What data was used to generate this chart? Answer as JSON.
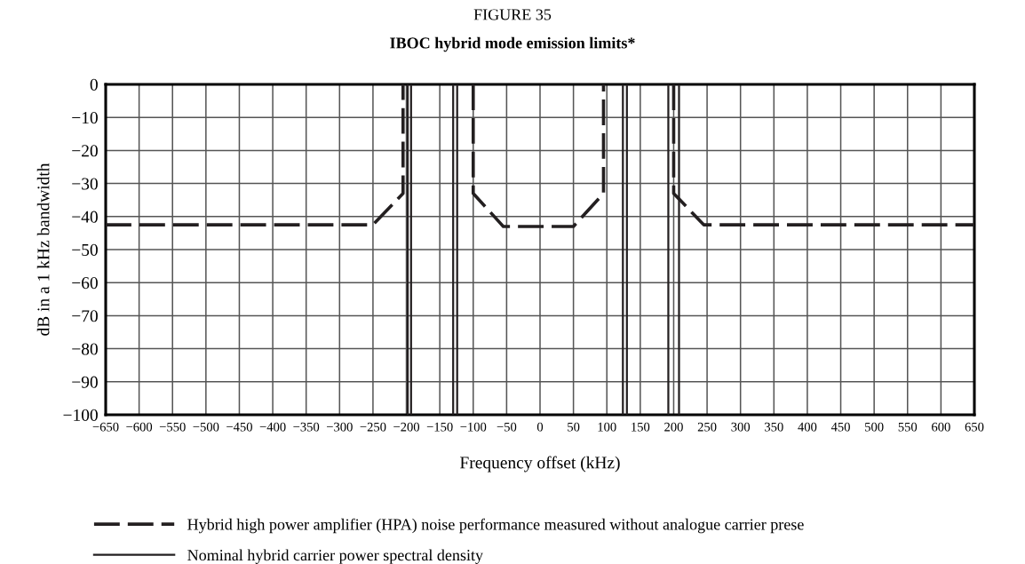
{
  "chart_data": {
    "type": "line",
    "title": "FIGURE 35",
    "subtitle": "IBOC hybrid mode emission limits*",
    "xlabel": "Frequency offset (kHz)",
    "ylabel": "dB in a 1 kHz bandwidth",
    "series": [
      {
        "name": "Hybrid high power amplifier (HPA) noise performance measured without analogue carrier prese",
        "color": "#231f20",
        "line_style": "dashed",
        "x": [
          -650,
          -250,
          -205,
          -205,
          null,
          -100,
          -100,
          -55,
          50,
          95,
          95,
          null,
          200,
          200,
          245,
          650
        ],
        "values": [
          -42.5,
          -42.5,
          -33,
          0,
          null,
          0,
          -33,
          -43,
          -43,
          -33,
          0,
          null,
          0,
          -33,
          -42.5,
          -42.5
        ]
      },
      {
        "name": "Nominal hybrid carrier power spectral density",
        "color": "#231f20",
        "line_style": "solid",
        "x": [
          -198,
          -198,
          null,
          -193,
          -193,
          null,
          -130,
          -130,
          null,
          -124,
          -124,
          null,
          124,
          124,
          null,
          130,
          130,
          null,
          192,
          192,
          null,
          208,
          208
        ],
        "values": [
          -100,
          0,
          null,
          -100,
          0,
          null,
          -100,
          0,
          null,
          -100,
          0,
          null,
          -100,
          0,
          null,
          -100,
          0,
          null,
          -100,
          0,
          null,
          -100,
          0
        ]
      }
    ],
    "xlim": [
      -650,
      650
    ],
    "ylim": [
      -100,
      0
    ],
    "xticks": [
      {
        "value": -650,
        "label": "−650"
      },
      {
        "value": -600,
        "label": "−600"
      },
      {
        "value": -550,
        "label": "−550"
      },
      {
        "value": -500,
        "label": "−500"
      },
      {
        "value": -450,
        "label": "−450"
      },
      {
        "value": -400,
        "label": "−400"
      },
      {
        "value": -350,
        "label": "−350"
      },
      {
        "value": -300,
        "label": "−300"
      },
      {
        "value": -250,
        "label": "−250"
      },
      {
        "value": -200,
        "label": "−200"
      },
      {
        "value": -150,
        "label": "−150"
      },
      {
        "value": -100,
        "label": "−100"
      },
      {
        "value": -50,
        "label": "−50"
      },
      0,
      50,
      100,
      150,
      200,
      250,
      300,
      350,
      400,
      450,
      500,
      550,
      600,
      650
    ],
    "yticks": [
      0,
      {
        "value": -10,
        "label": "−10"
      },
      {
        "value": -20,
        "label": "−20"
      },
      {
        "value": -30,
        "label": "−30"
      },
      {
        "value": -40,
        "label": "−40"
      },
      {
        "value": -50,
        "label": "−50"
      },
      {
        "value": -60,
        "label": "−60"
      },
      {
        "value": -70,
        "label": "−70"
      },
      {
        "value": -80,
        "label": "−80"
      },
      {
        "value": -90,
        "label": "−90"
      },
      {
        "value": -100,
        "label": "−100"
      }
    ],
    "grid": true,
    "legend": "bottom",
    "marker": "none"
  }
}
